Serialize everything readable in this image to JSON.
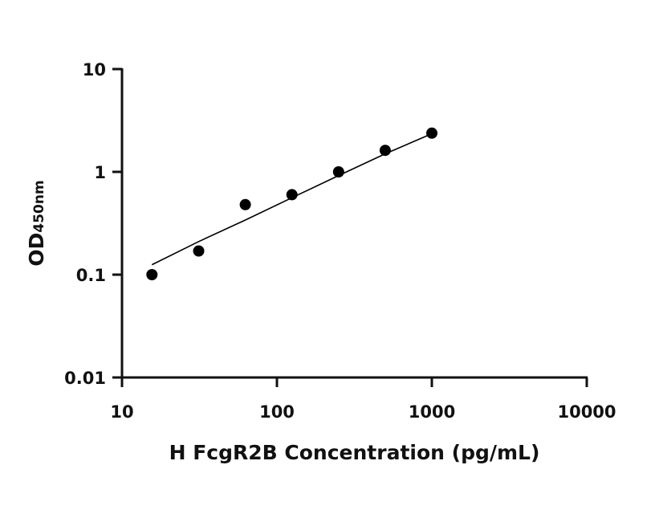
{
  "chart_data": {
    "type": "scatter",
    "xlabel": "H FcgR2B Concentration (pg/mL)",
    "ylabel": "OD",
    "ylabel_subscript": "450nm",
    "x_scale": "log",
    "y_scale": "log",
    "xlim": [
      10,
      10000
    ],
    "ylim": [
      0.01,
      10
    ],
    "x_ticks": [
      10,
      100,
      1000,
      10000
    ],
    "x_tick_labels": [
      "10",
      "100",
      "1000",
      "10000"
    ],
    "y_ticks": [
      0.01,
      0.1,
      1,
      10
    ],
    "y_tick_labels": [
      "0.01",
      "0.1",
      "1",
      "10"
    ],
    "grid": false,
    "series": [
      {
        "x": [
          15.6,
          31.25,
          62.5,
          125,
          250,
          500,
          1000
        ],
        "y": [
          0.1,
          0.17,
          0.48,
          0.6,
          1.0,
          1.62,
          2.38
        ],
        "marker": "circle",
        "color": "#000000"
      }
    ],
    "fit_curve": {
      "x": [
        15.6,
        31.25,
        62.5,
        125,
        250,
        500,
        1000
      ],
      "y": [
        0.125,
        0.21,
        0.34,
        0.56,
        0.92,
        1.5,
        2.35
      ],
      "color": "#000000"
    }
  }
}
